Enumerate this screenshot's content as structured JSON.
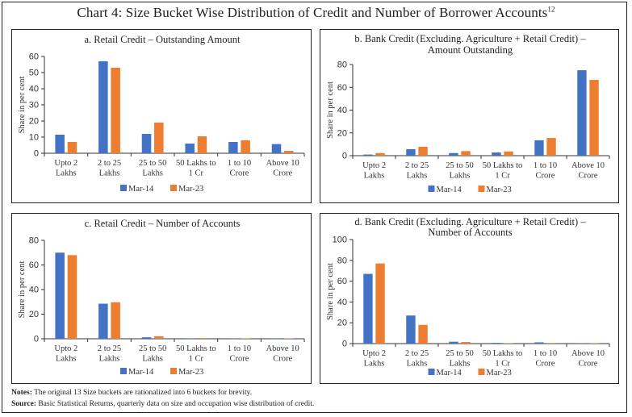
{
  "title": "Chart 4: Size Bucket Wise Distribution of Credit and Number of Borrower Accounts",
  "title_sup": "12",
  "notes": {
    "notes_label": "Notes:",
    "notes_text": " The original 13 Size buckets are rationalized into 6 buckets for brevity.",
    "source_label": "Source:",
    "source_text": " Basic Statistical Returns, quarterly data on size and occupation wise distribution of credit."
  },
  "colors": {
    "Mar-14": "#4472C4",
    "Mar-23": "#ED7D31"
  },
  "chart_data": [
    {
      "id": "a",
      "type": "bar",
      "title": [
        "a. Retail Credit – Outstanding Amount"
      ],
      "xlabel": "",
      "ylabel": "Share in per cent",
      "ylim": [
        0,
        60
      ],
      "yticks": [
        0,
        10,
        20,
        30,
        40,
        50,
        60
      ],
      "grid": false,
      "legend": "bottom",
      "categories": [
        [
          "Upto 2",
          "Lakhs"
        ],
        [
          "2 to 25",
          "Lakhs"
        ],
        [
          "25 to 50",
          "Lakhs"
        ],
        [
          "50 Lakhs to",
          "1 Cr"
        ],
        [
          "1 to 10",
          "Crore"
        ],
        [
          "Above 10",
          "Crore"
        ]
      ],
      "series": [
        {
          "name": "Mar-14",
          "values": [
            11.5,
            57,
            12,
            6,
            7,
            5.7
          ]
        },
        {
          "name": "Mar-23",
          "values": [
            7,
            53,
            19,
            10.5,
            8,
            1.5
          ]
        }
      ]
    },
    {
      "id": "b",
      "type": "bar",
      "title": [
        "b. Bank Credit (Excluding. Agriculture + Retail Credit) –",
        "Amount Outstanding"
      ],
      "xlabel": "",
      "ylabel": "Share in per cent",
      "ylim": [
        0,
        80
      ],
      "yticks": [
        0,
        20,
        40,
        60,
        80
      ],
      "grid": false,
      "legend": "bottom",
      "categories": [
        [
          "Upto 2",
          "Lakhs"
        ],
        [
          "2 to 25",
          "Lakhs"
        ],
        [
          "25 to 50",
          "Lakhs"
        ],
        [
          "50 Lakhs to",
          "1 Cr"
        ],
        [
          "1 to 10",
          "Crore"
        ],
        [
          "Above 10",
          "Crore"
        ]
      ],
      "series": [
        {
          "name": "Mar-14",
          "values": [
            1,
            5.7,
            2.3,
            2.8,
            13.5,
            75
          ]
        },
        {
          "name": "Mar-23",
          "values": [
            2.3,
            7.8,
            4,
            3.7,
            15.5,
            66.5
          ]
        }
      ]
    },
    {
      "id": "c",
      "type": "bar",
      "title": [
        "c. Retail Credit – Number of Accounts"
      ],
      "xlabel": "",
      "ylabel": "Share in per cent",
      "ylim": [
        0,
        80
      ],
      "yticks": [
        0,
        20,
        40,
        60,
        80
      ],
      "grid": false,
      "legend": "bottom",
      "categories": [
        [
          "Upto 2",
          "Lakhs"
        ],
        [
          "2 to 25",
          "Lakhs"
        ],
        [
          "25 to 50",
          "Lakhs"
        ],
        [
          "50 Lakhs to",
          "1 Cr"
        ],
        [
          "1 to 10",
          "Crore"
        ],
        [
          "Above 10",
          "Crore"
        ]
      ],
      "series": [
        {
          "name": "Mar-14",
          "values": [
            70,
            28.5,
            1.2,
            0.2,
            0.1,
            0.05
          ]
        },
        {
          "name": "Mar-23",
          "values": [
            68,
            29.7,
            2,
            0.6,
            0.1,
            0.05
          ]
        }
      ]
    },
    {
      "id": "d",
      "type": "bar",
      "title": [
        "d. Bank Credit (Excluding. Agriculture + Retail Credit) –",
        "Number of Accounts"
      ],
      "xlabel": "",
      "ylabel": "Share in per cent",
      "ylim": [
        0,
        100
      ],
      "yticks": [
        0,
        20,
        40,
        60,
        80,
        100
      ],
      "grid": false,
      "legend": "bottom",
      "categories": [
        [
          "Upto 2",
          "Lakhs"
        ],
        [
          "2 to 25",
          "Lakhs"
        ],
        [
          "25 to 50",
          "Lakhs"
        ],
        [
          "50 Lakhs to",
          "1 Cr"
        ],
        [
          "1 to 10",
          "Crore"
        ],
        [
          "Above 10",
          "Crore"
        ]
      ],
      "series": [
        {
          "name": "Mar-14",
          "values": [
            67,
            27,
            1.8,
            0.7,
            1.2,
            0.02
          ]
        },
        {
          "name": "Mar-23",
          "values": [
            77,
            18,
            1.5,
            0.5,
            0.6,
            0.02
          ]
        }
      ]
    }
  ]
}
